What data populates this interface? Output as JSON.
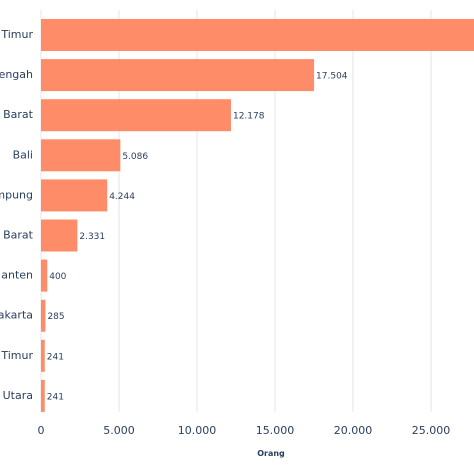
{
  "chart_data": {
    "type": "bar",
    "orientation": "horizontal",
    "categories": [
      "Timur",
      "engah",
      "Barat",
      "Bali",
      "mpung",
      "Barat",
      "anten",
      "akarta",
      "Timur",
      "Utara"
    ],
    "values": [
      28000,
      17504,
      12178,
      5086,
      4244,
      2331,
      400,
      285,
      241,
      241
    ],
    "value_labels": [
      "",
      "17.504",
      "12.178",
      "5.086",
      "4.244",
      "2.331",
      "400",
      "285",
      "241",
      "241"
    ],
    "xlabel": "Orang",
    "ylabel": "",
    "xlim": [
      0,
      28000
    ],
    "x_ticks": [
      0,
      5000,
      10000,
      15000,
      20000,
      25000
    ],
    "x_tick_labels": [
      "0",
      "5.000",
      "10.000",
      "15.000",
      "20.000",
      "25.000"
    ],
    "grid": true,
    "bar_color": "#ff8c69"
  }
}
